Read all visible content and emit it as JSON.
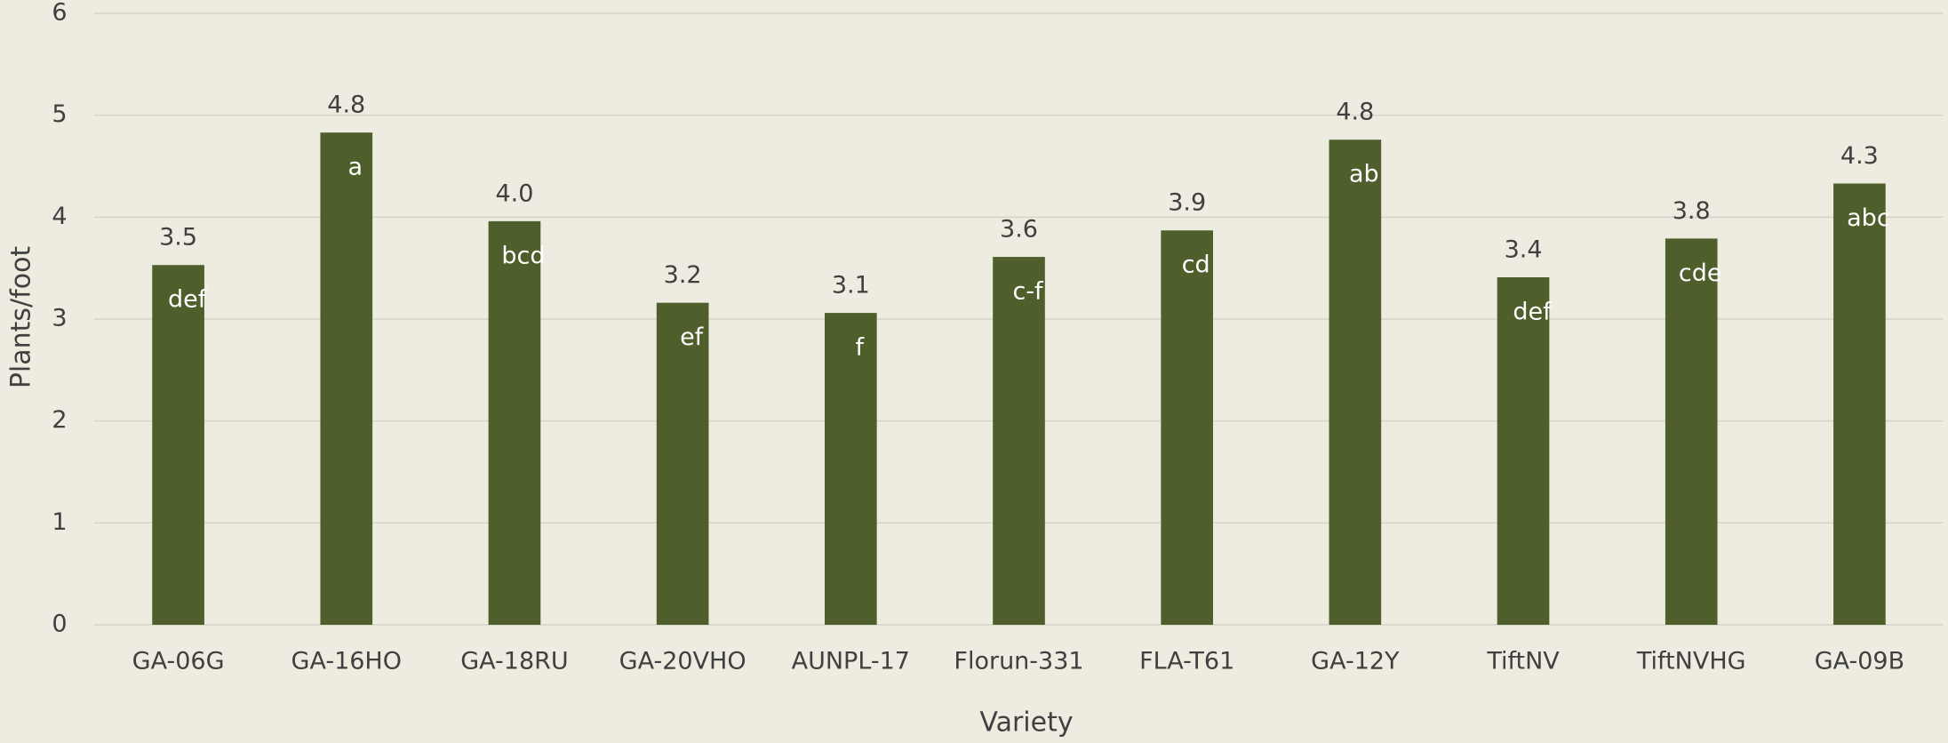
{
  "chart_data": {
    "type": "bar",
    "x_label": "Variety",
    "y_label": "Plants/foot",
    "categories": [
      "GA-06G",
      "GA-16HO",
      "GA-18RU",
      "GA-20VHO",
      "AUNPL-17",
      "Florun-331",
      "FLA-T61",
      "GA-12Y",
      "TiftNV",
      "TiftNVHG",
      "GA-09B"
    ],
    "values": [
      3.53,
      4.83,
      3.96,
      3.16,
      3.06,
      3.61,
      3.87,
      4.76,
      3.41,
      3.79,
      4.33
    ],
    "value_labels": [
      "3.5",
      "4.8",
      "4.0",
      "3.2",
      "3.1",
      "3.6",
      "3.9",
      "4.8",
      "3.4",
      "3.8",
      "4.3"
    ],
    "significance_letters": [
      "def",
      "a",
      "bcd",
      "ef",
      "f",
      "c-f",
      "cd",
      "ab",
      "def",
      "cde",
      "abc"
    ],
    "color": "#4e5f2b",
    "ylim": [
      0,
      6
    ],
    "yticks": [
      0,
      1,
      2,
      3,
      4,
      5,
      6
    ],
    "grid": true
  }
}
